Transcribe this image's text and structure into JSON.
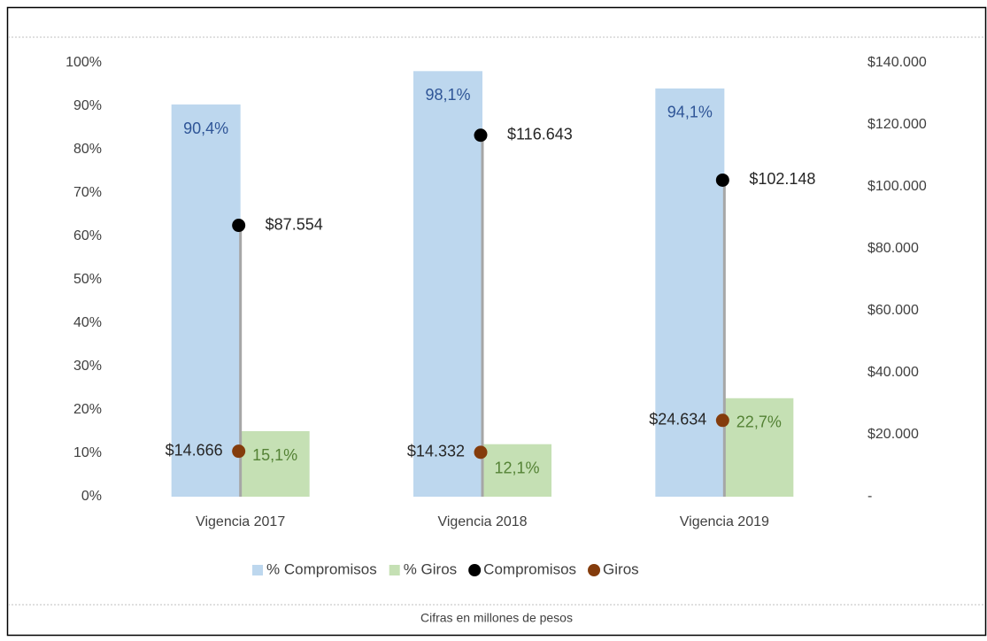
{
  "chart_data": {
    "type": "bar",
    "categories": [
      "Vigencia 2017",
      "Vigencia 2018",
      "Vigencia 2019"
    ],
    "series": [
      {
        "name": "% Compromisos",
        "color": "#bdd7ee",
        "label_color": "#2f5597",
        "values": [
          90.4,
          98.1,
          94.1
        ],
        "value_labels": [
          "90,4%",
          "98,1%",
          "94,1%"
        ]
      },
      {
        "name": "% Giros",
        "color": "#c5e0b4",
        "label_color": "#548235",
        "values": [
          15.1,
          12.1,
          22.7
        ],
        "value_labels": [
          "15,1%",
          "12,1%",
          "22,7%"
        ]
      },
      {
        "name": "Compromisos",
        "type": "scatter",
        "axis": "y2",
        "color": "#000000",
        "label_color": "#262626",
        "values": [
          87554,
          116643,
          102148
        ],
        "value_labels": [
          "$87.554",
          "$116.643",
          "$102.148"
        ]
      },
      {
        "name": "Giros",
        "type": "scatter",
        "axis": "y2",
        "color": "#843c0c",
        "label_color": "#262626",
        "values": [
          14666,
          14332,
          24634
        ],
        "value_labels": [
          "$14.666",
          "$14.332",
          "$24.634"
        ]
      }
    ],
    "ylim": [
      0,
      100
    ],
    "yticks": [
      {
        "value": 0,
        "label": "0%"
      },
      {
        "value": 10,
        "label": "10%"
      },
      {
        "value": 20,
        "label": "20%"
      },
      {
        "value": 30,
        "label": "30%"
      },
      {
        "value": 40,
        "label": "40%"
      },
      {
        "value": 50,
        "label": "50%"
      },
      {
        "value": 60,
        "label": "60%"
      },
      {
        "value": 70,
        "label": "70%"
      },
      {
        "value": 80,
        "label": "80%"
      },
      {
        "value": 90,
        "label": "90%"
      },
      {
        "value": 100,
        "label": "100%"
      }
    ],
    "y2lim": [
      0,
      140000
    ],
    "y2ticks": [
      {
        "value": 0,
        "label": "-"
      },
      {
        "value": 20000,
        "label": "$20.000"
      },
      {
        "value": 40000,
        "label": "$40.000"
      },
      {
        "value": 60000,
        "label": "$60.000"
      },
      {
        "value": 80000,
        "label": "$80.000"
      },
      {
        "value": 100000,
        "label": "$100.000"
      },
      {
        "value": 120000,
        "label": "$120.000"
      },
      {
        "value": 140000,
        "label": "$140.000"
      }
    ],
    "high_low_lines": true,
    "legend": "bottom",
    "caption": "Cifras en millones de pesos"
  }
}
